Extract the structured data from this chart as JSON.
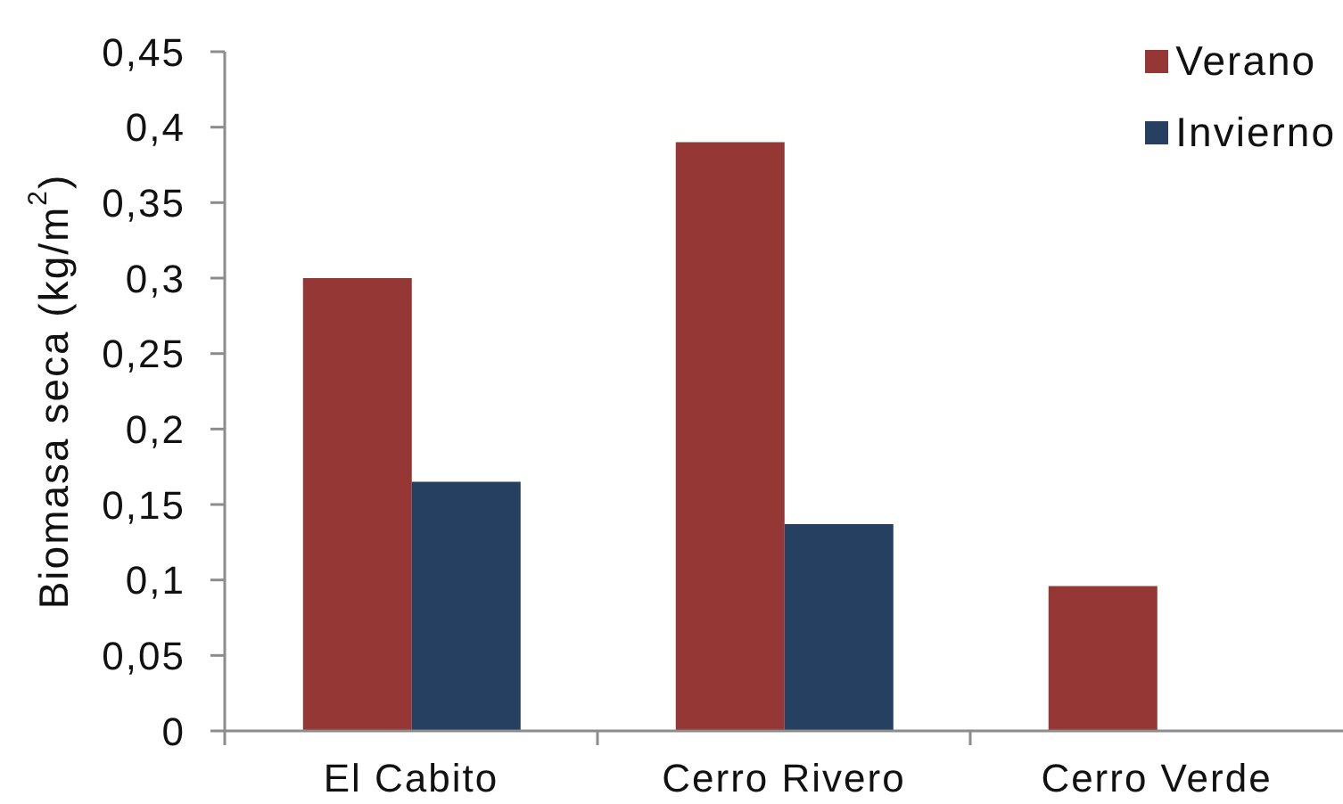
{
  "chart_data": {
    "type": "bar",
    "ylabel": "Biomasa seca (kg/m$^{2}$)",
    "categories": [
      "El Cabito",
      "Cerro Rivero",
      "Cerro Verde"
    ],
    "series": [
      {
        "name": "Verano",
        "color": "#953735",
        "values": [
          0.3,
          0.39,
          0.096
        ]
      },
      {
        "name": "Invierno",
        "color": "#254061",
        "values": [
          0.165,
          0.137,
          null
        ]
      }
    ],
    "ylim": [
      0,
      0.45
    ],
    "yticks": [
      0,
      {
        "value": 0.05,
        "label": "0,05"
      },
      {
        "value": 0.1,
        "label": "0,1"
      },
      {
        "value": 0.15,
        "label": "0,15"
      },
      {
        "value": 0.2,
        "label": "0,2"
      },
      {
        "value": 0.25,
        "label": "0,25"
      },
      {
        "value": 0.3,
        "label": "0,3"
      },
      {
        "value": 0.35,
        "label": "0,35"
      },
      {
        "value": 0.4,
        "label": "0,4"
      },
      {
        "value": 0.45,
        "label": "0,45"
      }
    ],
    "legend": "top right"
  }
}
